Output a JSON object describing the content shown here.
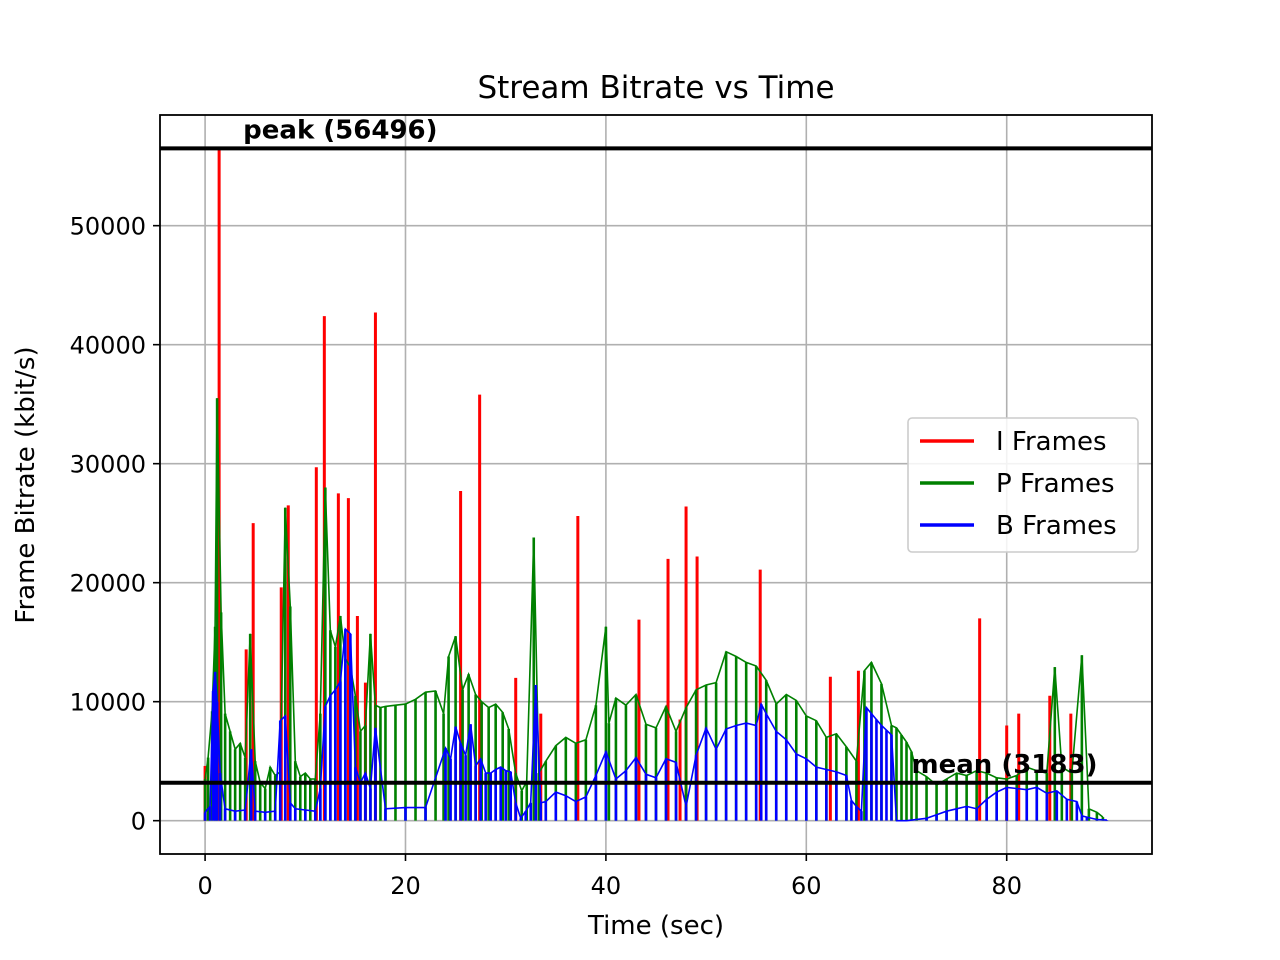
{
  "chart_data": {
    "type": "line",
    "title": "Stream Bitrate vs Time",
    "xlabel": "Time (sec)",
    "ylabel": "Frame Bitrate (kbit/s)",
    "xlim": [
      -4.5,
      94.5
    ],
    "ylim": [
      -2800,
      59300
    ],
    "x_ticks": [
      0,
      20,
      40,
      60,
      80
    ],
    "y_ticks": [
      0,
      10000,
      20000,
      30000,
      40000,
      50000
    ],
    "grid": true,
    "legend_position": "center-right",
    "reference_lines": [
      {
        "name": "peak",
        "value": 56496,
        "label": "peak (56496)",
        "label_x": 3.8
      },
      {
        "name": "mean",
        "value": 3183,
        "label": "mean (3183)",
        "label_x": 70.5
      }
    ],
    "series": [
      {
        "name": "I Frames",
        "color": "#ff0000",
        "x": [
          0.0,
          1.4,
          4.1,
          4.8,
          7.6,
          8.3,
          11.1,
          11.9,
          13.3,
          14.3,
          15.2,
          16.0,
          17.0,
          25.5,
          27.4,
          31.0,
          33.5,
          37.2,
          43.3,
          46.2,
          47.4,
          48.0,
          49.1,
          55.4,
          62.4,
          65.2,
          77.3,
          80.0,
          81.2,
          84.3,
          86.4
        ],
        "y": [
          4600,
          56496,
          14400,
          25000,
          19600,
          26500,
          29700,
          42400,
          27500,
          27100,
          17200,
          11600,
          42700,
          27700,
          35800,
          12000,
          9000,
          25600,
          16900,
          22000,
          8500,
          26400,
          22200,
          21100,
          12100,
          12600,
          17000,
          8000,
          9000,
          10500,
          9000
        ]
      },
      {
        "name": "P Frames",
        "color": "#008000",
        "x": [
          0.0,
          0.3,
          0.7,
          1.0,
          1.2,
          1.6,
          2.0,
          2.5,
          3.0,
          3.5,
          4.0,
          4.5,
          5.0,
          5.5,
          6.0,
          6.5,
          7.0,
          7.5,
          8.0,
          8.5,
          9.0,
          9.5,
          10.0,
          10.5,
          11.0,
          11.5,
          12.0,
          12.5,
          13.0,
          13.5,
          14.0,
          14.5,
          15.0,
          15.5,
          16.0,
          16.5,
          17.0,
          17.5,
          18.0,
          19.0,
          20.0,
          21.0,
          22.0,
          23.0,
          23.8,
          24.3,
          25.0,
          25.7,
          26.3,
          27.0,
          27.6,
          28.3,
          29.0,
          29.7,
          30.3,
          31.0,
          31.6,
          32.1,
          32.8,
          33.3,
          34.0,
          35.0,
          36.0,
          37.0,
          38.0,
          39.0,
          40.0,
          40.3,
          41.0,
          42.0,
          43.0,
          44.0,
          45.0,
          46.0,
          47.0,
          48.0,
          49.0,
          50.0,
          51.0,
          52.0,
          53.0,
          54.0,
          55.0,
          56.0,
          57.0,
          58.0,
          59.0,
          60.0,
          61.0,
          62.0,
          63.0,
          64.0,
          65.0,
          65.8,
          66.5,
          67.5,
          68.5,
          69.0,
          69.5,
          70.0,
          70.5,
          71.0,
          72.0,
          73.0,
          74.0,
          75.0,
          76.0,
          77.0,
          78.0,
          79.0,
          80.0,
          81.0,
          82.0,
          83.0,
          84.0,
          84.8,
          85.5,
          86.5,
          87.5,
          88.2,
          89.0,
          89.6
        ],
        "y": [
          3500,
          5300,
          9200,
          16300,
          35500,
          17500,
          9000,
          7500,
          6000,
          6500,
          5300,
          15700,
          5000,
          3200,
          2700,
          4500,
          3800,
          4100,
          26300,
          18000,
          5000,
          3700,
          4000,
          3500,
          3500,
          9000,
          28000,
          16000,
          14600,
          17200,
          13600,
          12900,
          10500,
          7500,
          8000,
          15700,
          9700,
          9500,
          9600,
          9700,
          9800,
          10200,
          10800,
          10900,
          9000,
          13800,
          15500,
          11000,
          12300,
          10600,
          10000,
          9500,
          9800,
          9100,
          7700,
          4000,
          2500,
          3300,
          23800,
          4000,
          5000,
          6300,
          7000,
          6500,
          6800,
          9700,
          16300,
          8200,
          10300,
          9700,
          10600,
          8100,
          7800,
          9600,
          7500,
          9500,
          11000,
          11400,
          11600,
          14200,
          13800,
          13300,
          13000,
          11800,
          9800,
          10600,
          10100,
          8800,
          8400,
          7000,
          7300,
          6200,
          5000,
          12600,
          13300,
          11500,
          8000,
          7800,
          7200,
          6600,
          5800,
          4200,
          3700,
          3000,
          3500,
          4000,
          3800,
          4200,
          4000,
          3600,
          3500,
          3800,
          4500,
          4200,
          4000,
          12900,
          4500,
          4000,
          13900,
          1000,
          700,
          300
        ]
      },
      {
        "name": "B Frames",
        "color": "#0000ff",
        "x": [
          0.0,
          0.5,
          0.8,
          1.0,
          1.2,
          1.5,
          2.0,
          3.0,
          4.0,
          4.6,
          5.0,
          6.0,
          7.0,
          7.5,
          8.0,
          8.5,
          9.0,
          10.0,
          11.0,
          11.5,
          12.0,
          12.5,
          13.0,
          13.5,
          14.0,
          14.5,
          15.0,
          15.5,
          16.0,
          16.5,
          17.0,
          18.0,
          20.0,
          22.0,
          24.0,
          24.5,
          25.0,
          25.5,
          26.0,
          26.5,
          27.0,
          27.5,
          28.0,
          28.5,
          29.0,
          29.5,
          30.0,
          30.5,
          31.0,
          31.5,
          32.0,
          32.5,
          33.0,
          33.5,
          34.0,
          35.0,
          36.0,
          37.0,
          38.0,
          39.0,
          40.0,
          41.0,
          42.0,
          43.0,
          44.0,
          45.0,
          46.0,
          47.0,
          48.0,
          49.0,
          50.0,
          51.0,
          52.0,
          53.0,
          54.0,
          55.0,
          55.5,
          56.0,
          57.0,
          58.0,
          59.0,
          60.0,
          61.0,
          62.0,
          63.0,
          64.0,
          64.5,
          65.0,
          65.5,
          66.0,
          66.5,
          67.0,
          67.5,
          68.0,
          68.5,
          69.0,
          70.0,
          72.0,
          73.0,
          74.0,
          75.0,
          76.0,
          77.0,
          78.0,
          79.0,
          80.0,
          81.0,
          82.0,
          83.0,
          84.0,
          85.0,
          86.0,
          87.0,
          87.5,
          88.0,
          89.0,
          90.0
        ],
        "y": [
          700,
          1200,
          10900,
          12500,
          10000,
          4000,
          1000,
          800,
          900,
          6000,
          800,
          700,
          800,
          8400,
          8800,
          1500,
          1000,
          900,
          800,
          2700,
          9600,
          10500,
          11000,
          11700,
          16100,
          15700,
          4500,
          3200,
          4000,
          2700,
          7800,
          1000,
          1100,
          1100,
          6100,
          5200,
          7900,
          6500,
          5500,
          8100,
          4600,
          5200,
          4000,
          4000,
          4300,
          4500,
          4200,
          4100,
          1500,
          200,
          800,
          1500,
          11400,
          1500,
          1600,
          2400,
          2100,
          1600,
          2000,
          3800,
          5800,
          3500,
          4200,
          5300,
          3900,
          3600,
          5200,
          4900,
          1200,
          5500,
          7800,
          6000,
          7700,
          8000,
          8200,
          8000,
          9800,
          9000,
          7500,
          6800,
          5600,
          5200,
          4500,
          4300,
          4100,
          3800,
          1700,
          1200,
          800,
          9500,
          9000,
          8500,
          8000,
          7600,
          7200,
          0,
          0,
          200,
          500,
          800,
          1000,
          1200,
          1000,
          1800,
          2400,
          2800,
          2700,
          2600,
          2800,
          2300,
          2500,
          1800,
          1600,
          400,
          300,
          100,
          50
        ]
      }
    ]
  }
}
